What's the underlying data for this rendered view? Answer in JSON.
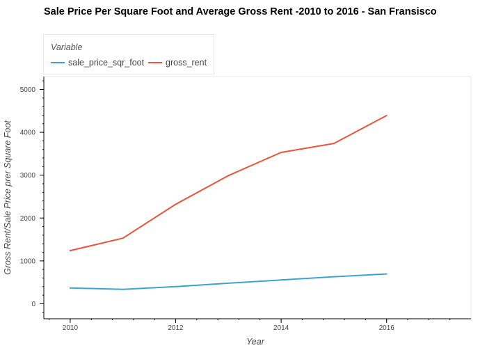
{
  "chart_data": {
    "type": "line",
    "title": "Sale Price Per Square Foot and Average Gross Rent -2010 to 2016 - San Fransisco",
    "xlabel": "Year",
    "ylabel": "Gross Rent/Sale Price prer Square Foot",
    "x": [
      2010,
      2011,
      2012,
      2013,
      2014,
      2015,
      2016
    ],
    "xlim": [
      2009.5,
      2017.6
    ],
    "ylim": [
      -350,
      5300
    ],
    "xticks": [
      2010,
      2012,
      2014,
      2016
    ],
    "yticks": [
      0,
      1000,
      2000,
      3000,
      4000,
      5000
    ],
    "legend_title": "Variable",
    "legend_position": "top-left",
    "grid": false,
    "series": [
      {
        "name": "sale_price_sqr_foot",
        "color": "#3ba3d0",
        "values": [
          370,
          335,
          400,
          480,
          555,
          630,
          695
        ]
      },
      {
        "name": "gross_rent",
        "color": "#e9553b",
        "values": [
          1240,
          1530,
          2320,
          2990,
          3530,
          3740,
          4390
        ]
      }
    ]
  }
}
